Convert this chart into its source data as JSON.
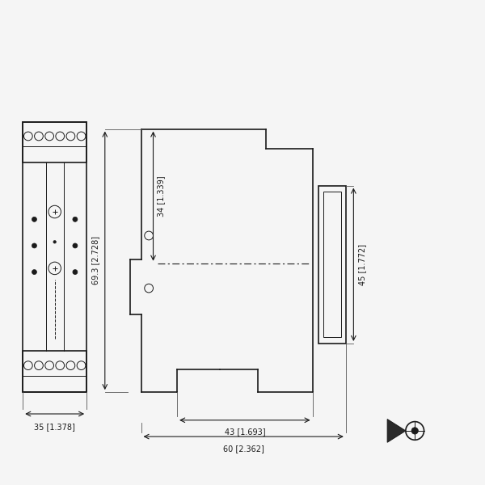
{
  "bg_color": "#f5f5f5",
  "line_color": "#1a1a1a",
  "lw": 1.2,
  "thin_lw": 0.7,
  "dimensions": {
    "dim_35": "35 [1.378]",
    "dim_69": "69.3 [2.728]",
    "dim_34": "34 [1.339]",
    "dim_43": "43 [1.693]",
    "dim_60": "60 [2.362]",
    "dim_45": "45 [1.772]"
  }
}
